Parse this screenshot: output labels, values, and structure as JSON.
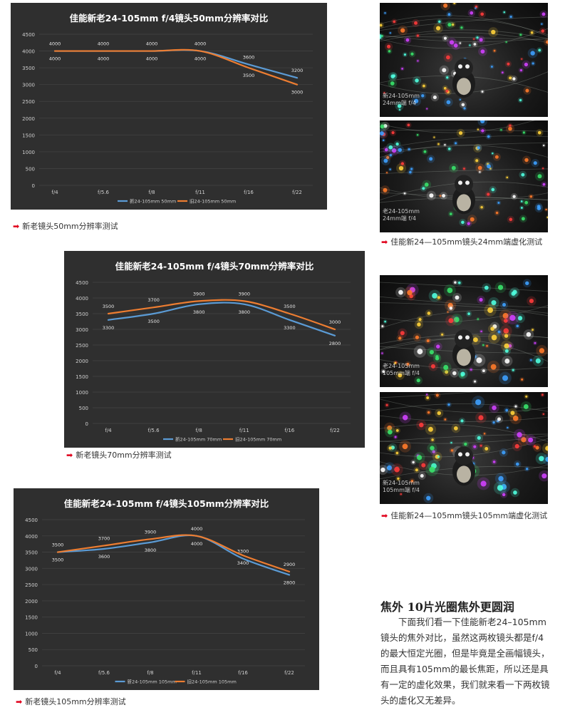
{
  "chart_data": [
    {
      "type": "line",
      "title": "佳能新老24-105mm f/4镜头50mm分辨率对比",
      "categories": [
        "f/4",
        "f/5.6",
        "f/8",
        "f/11",
        "f/16",
        "f/22"
      ],
      "ylim": [
        0,
        4500
      ],
      "yticks": [
        0,
        500,
        1000,
        1500,
        2000,
        2500,
        3000,
        3500,
        4000,
        4500
      ],
      "grid": true,
      "legend_position": "bottom",
      "series": [
        {
          "name": "新24-105mm 50mm",
          "color": "#5b9bd5",
          "values": [
            4000,
            4000,
            4000,
            4000,
            3600,
            3200
          ],
          "label_positions": [
            "below",
            "above",
            "above",
            "above",
            "above",
            "above"
          ]
        },
        {
          "name": "旧24-105mm 50mm",
          "color": "#ed7d31",
          "values": [
            4000,
            4000,
            4000,
            4000,
            3500,
            3000
          ],
          "label_positions": [
            "above",
            "below",
            "below",
            "below",
            "below",
            "below"
          ]
        }
      ],
      "caption": "新老镜头50mm分辨率测试"
    },
    {
      "type": "line",
      "title": "佳能新老24-105mm f/4镜头70mm分辨率对比",
      "categories": [
        "f/4",
        "f/5.6",
        "f/8",
        "f/11",
        "f/16",
        "f/22"
      ],
      "ylim": [
        0,
        4500
      ],
      "yticks": [
        0,
        500,
        1000,
        1500,
        2000,
        2500,
        3000,
        3500,
        4000,
        4500
      ],
      "grid": true,
      "legend_position": "bottom",
      "series": [
        {
          "name": "新24-105mm 70mm",
          "color": "#5b9bd5",
          "values": [
            3300,
            3500,
            3800,
            3800,
            3300,
            2800
          ],
          "label_positions": [
            "below",
            "below",
            "below",
            "below",
            "below",
            "below"
          ]
        },
        {
          "name": "旧24-105mm 70mm",
          "color": "#ed7d31",
          "values": [
            3500,
            3700,
            3900,
            3900,
            3500,
            3000
          ],
          "label_positions": [
            "above",
            "above",
            "above",
            "above",
            "above",
            "above"
          ]
        }
      ],
      "caption": "新老镜头70mm分辨率测试"
    },
    {
      "type": "line",
      "title": "佳能新老24-105mm f/4镜头105mm分辨率对比",
      "categories": [
        "f/4",
        "f/5.6",
        "f/8",
        "f/11",
        "f/16",
        "f/22"
      ],
      "ylim": [
        0,
        4500
      ],
      "yticks": [
        0,
        500,
        1000,
        1500,
        2000,
        2500,
        3000,
        3500,
        4000,
        4500
      ],
      "grid": true,
      "legend_position": "bottom",
      "series": [
        {
          "name": "新24-105mm 105mm",
          "color": "#5b9bd5",
          "values": [
            3500,
            3600,
            3800,
            4000,
            3300,
            2800
          ],
          "label_positions": [
            "below",
            "below",
            "below",
            "below",
            "above",
            "below"
          ]
        },
        {
          "name": "旧24-105mm 105mm",
          "color": "#ed7d31",
          "values": [
            3500,
            3700,
            3900,
            4000,
            3400,
            2900
          ],
          "label_positions": [
            "above",
            "above",
            "above",
            "above",
            "below",
            "above"
          ]
        }
      ],
      "caption": "新老镜头105mm分辨率测试"
    }
  ],
  "photos": [
    {
      "overlay_line1": "新24-105mm",
      "overlay_line2": "24mm端 f/4"
    },
    {
      "overlay_line1": "老24-105mm",
      "overlay_line2": "24mm端 f/4"
    },
    {
      "overlay_line1": "老24-105mm",
      "overlay_line2": "105mm端 f/4"
    },
    {
      "overlay_line1": "新24-105mm",
      "overlay_line2": "105mm端 f/4"
    }
  ],
  "photo_captions": {
    "wide": "佳能新24—105mm镜头24mm端虚化测试",
    "tele": "佳能新24—105mm镜头105mm端虚化测试"
  },
  "article": {
    "heading": "焦外 10片光圈焦外更圆润",
    "body": "下面我们看一下佳能新老24–105mm镜头的焦外对比，虽然这两枚镜头都是f/4的最大恒定光圈，但是毕竟是全画幅镜头，而且具有105mm的最长焦距，所以还是具有一定的虚化效果，我们就来看一下两枚镜头的虚化又无差异。"
  },
  "colors": {
    "chart_bg": "#2f2f2f",
    "new_series": "#5b9bd5",
    "old_series": "#ed7d31",
    "caption_arrow": "#e0001a"
  }
}
